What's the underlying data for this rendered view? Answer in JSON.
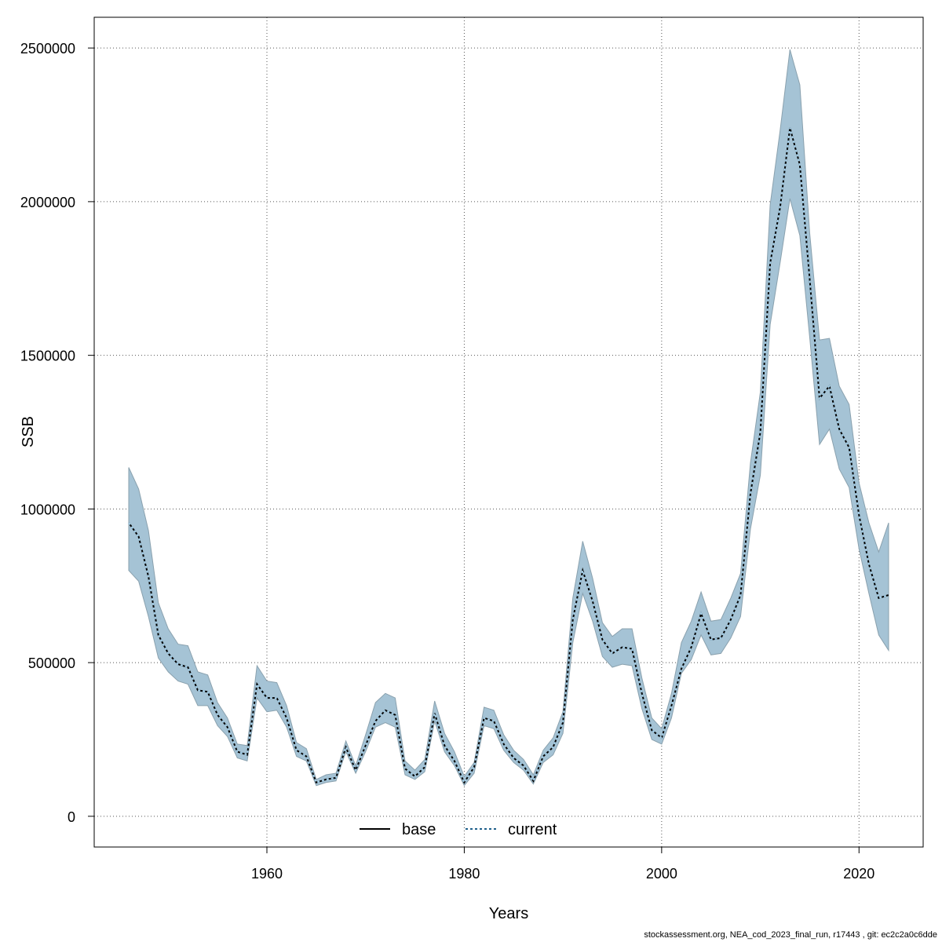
{
  "chart_data": {
    "type": "line",
    "title": "",
    "xlabel": "Years",
    "ylabel": "SSB",
    "xlim": [
      1942.5,
      2026.5
    ],
    "ylim": [
      -100000,
      2600000
    ],
    "x_ticks": [
      1960,
      1980,
      2000,
      2020
    ],
    "y_ticks": [
      0,
      500000,
      1000000,
      1500000,
      2000000,
      2500000
    ],
    "grid": true,
    "legend": {
      "placement": "bottom",
      "entries": [
        "base",
        "current"
      ]
    },
    "colors": {
      "band": "#a5c3d5",
      "band_edge": "#8aa1ae",
      "base": "#000000",
      "current": "#1f5f8b",
      "grid": "#555555"
    },
    "x": [
      1946,
      1947,
      1948,
      1949,
      1950,
      1951,
      1952,
      1953,
      1954,
      1955,
      1956,
      1957,
      1958,
      1959,
      1960,
      1961,
      1962,
      1963,
      1964,
      1965,
      1966,
      1967,
      1968,
      1969,
      1970,
      1971,
      1972,
      1973,
      1974,
      1975,
      1976,
      1977,
      1978,
      1979,
      1980,
      1981,
      1982,
      1983,
      1984,
      1985,
      1986,
      1987,
      1988,
      1989,
      1990,
      1991,
      1992,
      1993,
      1994,
      1995,
      1996,
      1997,
      1998,
      1999,
      2000,
      2001,
      2002,
      2003,
      2004,
      2005,
      2006,
      2007,
      2008,
      2009,
      2010,
      2011,
      2012,
      2013,
      2014,
      2015,
      2016,
      2017,
      2018,
      2019,
      2020,
      2021,
      2022,
      2023
    ],
    "series": [
      {
        "name": "base",
        "values": [
          955000,
          910000,
          780000,
          590000,
          530000,
          495000,
          485000,
          410000,
          405000,
          330000,
          290000,
          210000,
          200000,
          430000,
          385000,
          385000,
          320000,
          215000,
          195000,
          110000,
          120000,
          125000,
          225000,
          150000,
          230000,
          310000,
          345000,
          330000,
          155000,
          130000,
          160000,
          335000,
          230000,
          180000,
          110000,
          160000,
          320000,
          310000,
          235000,
          190000,
          165000,
          115000,
          195000,
          225000,
          305000,
          640000,
          800000,
          700000,
          575000,
          530000,
          550000,
          545000,
          400000,
          280000,
          255000,
          360000,
          480000,
          550000,
          660000,
          575000,
          580000,
          640000,
          720000,
          1050000,
          1250000,
          1800000,
          1980000,
          2240000,
          2120000,
          1750000,
          1360000,
          1400000,
          1260000,
          1200000,
          980000,
          820000,
          710000,
          720000
        ]
      },
      {
        "name": "current",
        "values": [
          955000,
          910000,
          780000,
          590000,
          530000,
          495000,
          485000,
          410000,
          405000,
          330000,
          290000,
          210000,
          200000,
          430000,
          385000,
          385000,
          320000,
          215000,
          195000,
          110000,
          120000,
          125000,
          225000,
          150000,
          230000,
          310000,
          345000,
          330000,
          155000,
          130000,
          160000,
          335000,
          230000,
          180000,
          110000,
          160000,
          320000,
          310000,
          235000,
          190000,
          165000,
          115000,
          195000,
          225000,
          305000,
          640000,
          800000,
          700000,
          575000,
          530000,
          550000,
          545000,
          400000,
          280000,
          255000,
          360000,
          480000,
          550000,
          660000,
          575000,
          580000,
          640000,
          720000,
          1050000,
          1250000,
          1800000,
          1980000,
          2240000,
          2120000,
          1750000,
          1360000,
          1400000,
          1260000,
          1200000,
          980000,
          820000,
          710000,
          720000
        ]
      }
    ],
    "band_upper": [
      1135000,
      1065000,
      930000,
      695000,
      610000,
      560000,
      555000,
      470000,
      460000,
      370000,
      320000,
      235000,
      230000,
      490000,
      440000,
      435000,
      360000,
      240000,
      220000,
      120000,
      135000,
      140000,
      245000,
      165000,
      265000,
      370000,
      400000,
      385000,
      180000,
      150000,
      185000,
      375000,
      270000,
      210000,
      130000,
      175000,
      355000,
      345000,
      265000,
      215000,
      185000,
      135000,
      215000,
      255000,
      340000,
      710000,
      895000,
      775000,
      630000,
      585000,
      610000,
      610000,
      450000,
      320000,
      285000,
      400000,
      565000,
      635000,
      730000,
      635000,
      640000,
      710000,
      790000,
      1150000,
      1380000,
      1990000,
      2230000,
      2495000,
      2380000,
      1900000,
      1550000,
      1555000,
      1400000,
      1340000,
      1085000,
      955000,
      860000,
      955000
    ],
    "band_lower": [
      800000,
      765000,
      650000,
      515000,
      470000,
      440000,
      430000,
      360000,
      360000,
      295000,
      260000,
      190000,
      180000,
      385000,
      340000,
      345000,
      290000,
      195000,
      180000,
      100000,
      110000,
      115000,
      210000,
      140000,
      210000,
      290000,
      305000,
      290000,
      135000,
      120000,
      145000,
      310000,
      210000,
      165000,
      100000,
      140000,
      295000,
      285000,
      215000,
      175000,
      150000,
      105000,
      175000,
      200000,
      270000,
      565000,
      725000,
      635000,
      520000,
      485000,
      495000,
      490000,
      350000,
      250000,
      235000,
      320000,
      465000,
      510000,
      590000,
      525000,
      530000,
      580000,
      650000,
      935000,
      1110000,
      1600000,
      1800000,
      2010000,
      1890000,
      1560000,
      1210000,
      1260000,
      1130000,
      1070000,
      870000,
      725000,
      590000,
      540000
    ],
    "footer_text": "stockassessment.org, NEA_cod_2023_final_run, r17443 , git: ec2c2a0c6dde"
  }
}
